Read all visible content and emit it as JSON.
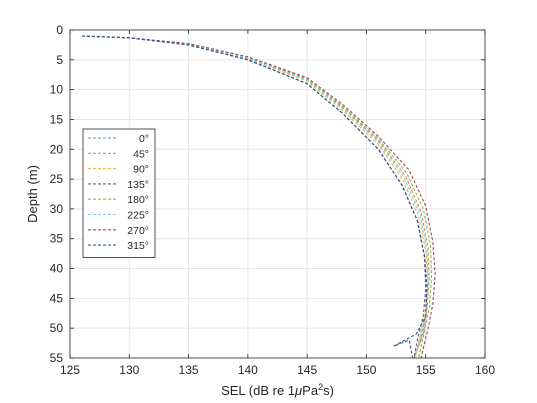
{
  "chart_data": {
    "type": "line",
    "title": "",
    "xlabel": "SEL (dB re 1μPa²s)",
    "xlabel_parts": {
      "prefix": "SEL (dB re 1",
      "mu": "μ",
      "unit": "Pa",
      "sup": "2",
      "suffix": "s)"
    },
    "ylabel": "Depth (m)",
    "xlim": [
      125,
      160
    ],
    "ylim": [
      0,
      55
    ],
    "y_reversed": true,
    "grid": true,
    "legend_position": "left",
    "xticks": [
      "125",
      "130",
      "135",
      "140",
      "145",
      "150",
      "155",
      "160"
    ],
    "yticks": [
      "0",
      "5",
      "10",
      "15",
      "20",
      "25",
      "30",
      "35",
      "40",
      "45",
      "50",
      "55"
    ],
    "series": [
      {
        "name": "0°",
        "color": "#5b8fbf",
        "points": [
          [
            126,
            1
          ],
          [
            130,
            1.3
          ],
          [
            135,
            2.5
          ],
          [
            140,
            5
          ],
          [
            145,
            9
          ],
          [
            148,
            14
          ],
          [
            151,
            20
          ],
          [
            153,
            26
          ],
          [
            154.3,
            32
          ],
          [
            154.9,
            38
          ],
          [
            155.1,
            43
          ],
          [
            155.0,
            48
          ],
          [
            154.6,
            52
          ],
          [
            154.0,
            55
          ]
        ]
      },
      {
        "name": "45°",
        "color": "#d98b5f",
        "points": [
          [
            126,
            1
          ],
          [
            130,
            1.3
          ],
          [
            135,
            2.3
          ],
          [
            140,
            4.6
          ],
          [
            145,
            8.3
          ],
          [
            148,
            13
          ],
          [
            151,
            18.5
          ],
          [
            153.3,
            24.5
          ],
          [
            154.6,
            30.5
          ],
          [
            155.2,
            36.5
          ],
          [
            155.3,
            42
          ],
          [
            155.1,
            47
          ],
          [
            154.8,
            51
          ],
          [
            154.0,
            55
          ]
        ]
      },
      {
        "name": "90°",
        "color": "#e0c040",
        "points": [
          [
            126,
            1
          ],
          [
            130,
            1.3
          ],
          [
            135,
            2.4
          ],
          [
            140,
            4.8
          ],
          [
            145,
            8.6
          ],
          [
            148,
            13.5
          ],
          [
            151,
            19.2
          ],
          [
            153.1,
            25.2
          ],
          [
            154.4,
            31.2
          ],
          [
            155.0,
            37
          ],
          [
            155.2,
            42.5
          ],
          [
            155.0,
            47.5
          ],
          [
            154.5,
            51.5
          ],
          [
            154.1,
            55
          ]
        ]
      },
      {
        "name": "135°",
        "color": "#7a4f8a",
        "points": [
          [
            126,
            1
          ],
          [
            130,
            1.3
          ],
          [
            135,
            2.5
          ],
          [
            140,
            5
          ],
          [
            145,
            9
          ],
          [
            148,
            14
          ],
          [
            151,
            20
          ],
          [
            153,
            26
          ],
          [
            154.3,
            32
          ],
          [
            154.9,
            38
          ],
          [
            155.0,
            43.5
          ],
          [
            154.8,
            48
          ],
          [
            154.3,
            52
          ],
          [
            154.0,
            55
          ]
        ]
      },
      {
        "name": "180°",
        "color": "#8fb85a",
        "points": [
          [
            126,
            1
          ],
          [
            130,
            1.3
          ],
          [
            135,
            2.3
          ],
          [
            140,
            4.6
          ],
          [
            145,
            8.2
          ],
          [
            148,
            12.8
          ],
          [
            151,
            18.2
          ],
          [
            153.4,
            24
          ],
          [
            154.8,
            30
          ],
          [
            155.4,
            36
          ],
          [
            155.5,
            41.5
          ],
          [
            155.3,
            46.5
          ],
          [
            154.9,
            50.5
          ],
          [
            154.4,
            55
          ]
        ]
      },
      {
        "name": "225°",
        "color": "#7fd0e0",
        "points": [
          [
            126,
            1
          ],
          [
            130,
            1.3
          ],
          [
            135,
            2.4
          ],
          [
            140,
            4.7
          ],
          [
            145,
            8.4
          ],
          [
            148,
            13.2
          ],
          [
            151,
            18.8
          ],
          [
            153.2,
            24.8
          ],
          [
            154.5,
            30.8
          ],
          [
            155.1,
            36.8
          ],
          [
            155.2,
            42.2
          ],
          [
            155.0,
            47.2
          ],
          [
            154.6,
            51.2
          ],
          [
            154.1,
            55
          ]
        ]
      },
      {
        "name": "270°",
        "color": "#a24a5a",
        "points": [
          [
            126,
            1
          ],
          [
            130,
            1.3
          ],
          [
            135,
            2.3
          ],
          [
            140,
            4.5
          ],
          [
            145,
            8.0
          ],
          [
            148,
            12.5
          ],
          [
            151,
            17.8
          ],
          [
            153.6,
            23.5
          ],
          [
            155.0,
            29.5
          ],
          [
            155.6,
            35.5
          ],
          [
            155.8,
            41
          ],
          [
            155.6,
            46
          ],
          [
            155.2,
            50
          ],
          [
            154.6,
            55
          ]
        ]
      },
      {
        "name": "315°",
        "color": "#2a5a8c",
        "points": [
          [
            126,
            1
          ],
          [
            130,
            1.3
          ],
          [
            135,
            2.5
          ],
          [
            140,
            5
          ],
          [
            145,
            9
          ],
          [
            148,
            14
          ],
          [
            151,
            20
          ],
          [
            153,
            26
          ],
          [
            154.3,
            32
          ],
          [
            154.9,
            38
          ],
          [
            155.1,
            43
          ],
          [
            155.0,
            48
          ],
          [
            154.2,
            51
          ],
          [
            152.3,
            53
          ],
          [
            153.6,
            52
          ],
          [
            153.9,
            55
          ]
        ]
      }
    ]
  }
}
